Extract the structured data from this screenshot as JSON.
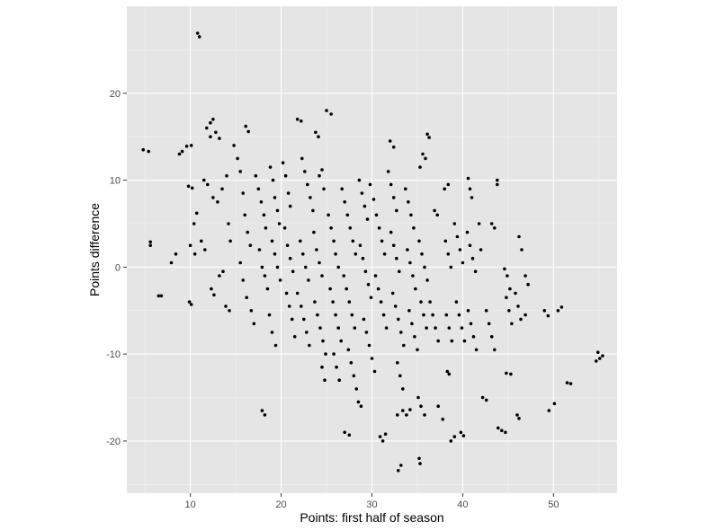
{
  "chart_data": {
    "type": "scatter",
    "title": "",
    "xlabel": "Points: first half of season",
    "ylabel": "Points difference",
    "xlim": [
      3,
      57
    ],
    "ylim": [
      -26,
      30
    ],
    "x_ticks": [
      10,
      20,
      30,
      40,
      50
    ],
    "y_ticks": [
      -20,
      -10,
      0,
      10,
      20
    ],
    "x_tick_labels": [
      "10",
      "20",
      "30",
      "40",
      "50"
    ],
    "y_tick_labels": [
      "-20",
      "-10",
      "0",
      "10",
      "20"
    ],
    "grid": true,
    "point_color": "#000000",
    "panel_color": "#e5e5e5",
    "points": [
      [
        10.8,
        26.9
      ],
      [
        11,
        26.5
      ],
      [
        4.8,
        13.5
      ],
      [
        5.4,
        13.3
      ],
      [
        5.6,
        2.9
      ],
      [
        5.6,
        2.5
      ],
      [
        6.5,
        -3.3
      ],
      [
        6.8,
        -3.3
      ],
      [
        7.9,
        0.5
      ],
      [
        8.4,
        1.5
      ],
      [
        8.8,
        13
      ],
      [
        9.1,
        13.3
      ],
      [
        9.6,
        13.9
      ],
      [
        10.1,
        14
      ],
      [
        9.8,
        9.3
      ],
      [
        10.2,
        9.1
      ],
      [
        10,
        2.5
      ],
      [
        10.5,
        1.5
      ],
      [
        9.9,
        -4
      ],
      [
        10.1,
        -4.3
      ],
      [
        10.4,
        5
      ],
      [
        10.7,
        6.2
      ],
      [
        11.2,
        3
      ],
      [
        11.6,
        2
      ],
      [
        11.8,
        16
      ],
      [
        12.2,
        16.6
      ],
      [
        12.5,
        17
      ],
      [
        12.2,
        15
      ],
      [
        12.8,
        15.5
      ],
      [
        13.2,
        14.8
      ],
      [
        12.3,
        -2.5
      ],
      [
        12.6,
        -3.2
      ],
      [
        11.5,
        10
      ],
      [
        11.9,
        9.5
      ],
      [
        12.5,
        8
      ],
      [
        13,
        7.5
      ],
      [
        13.5,
        9
      ],
      [
        14,
        10.5
      ],
      [
        14.2,
        5
      ],
      [
        14.4,
        3
      ],
      [
        13.2,
        -1
      ],
      [
        13.6,
        -0.5
      ],
      [
        13.9,
        -4.5
      ],
      [
        14.3,
        -5
      ],
      [
        14.8,
        14
      ],
      [
        15.2,
        12.5
      ],
      [
        15.5,
        11
      ],
      [
        15.8,
        8.5
      ],
      [
        16.1,
        16.2
      ],
      [
        16.4,
        15.6
      ],
      [
        16,
        6
      ],
      [
        16.3,
        4
      ],
      [
        16.6,
        2.5
      ],
      [
        15.5,
        0.5
      ],
      [
        15.8,
        -1.5
      ],
      [
        16.2,
        -3.5
      ],
      [
        16.7,
        -5
      ],
      [
        17,
        -6.5
      ],
      [
        17.2,
        10.5
      ],
      [
        17.5,
        9
      ],
      [
        17.8,
        7.5
      ],
      [
        18.1,
        6
      ],
      [
        18.3,
        4.5
      ],
      [
        17.6,
        2
      ],
      [
        17.9,
        0
      ],
      [
        18.2,
        -1
      ],
      [
        18.5,
        -2.5
      ],
      [
        17.9,
        -16.5
      ],
      [
        18.2,
        -17
      ],
      [
        18.8,
        11.5
      ],
      [
        19.1,
        10
      ],
      [
        19.3,
        8
      ],
      [
        19.6,
        6.5
      ],
      [
        19.8,
        5
      ],
      [
        19,
        3
      ],
      [
        19.3,
        1.5
      ],
      [
        19.6,
        0
      ],
      [
        19.9,
        -1.5
      ],
      [
        18.7,
        -5.5
      ],
      [
        19,
        -7.5
      ],
      [
        19.4,
        -9
      ],
      [
        20.2,
        12
      ],
      [
        20.5,
        10.5
      ],
      [
        20.8,
        8.5
      ],
      [
        21,
        7
      ],
      [
        20.4,
        4.5
      ],
      [
        20.7,
        2.5
      ],
      [
        21,
        1
      ],
      [
        21.3,
        -0.5
      ],
      [
        20.6,
        -3
      ],
      [
        20.9,
        -4.5
      ],
      [
        21.2,
        -6
      ],
      [
        21.5,
        -8
      ],
      [
        21.8,
        17
      ],
      [
        22.2,
        16.8
      ],
      [
        22.1,
        3
      ],
      [
        22.4,
        1.5
      ],
      [
        22.7,
        0
      ],
      [
        23,
        -1.5
      ],
      [
        21.8,
        -3
      ],
      [
        22.2,
        -4.5
      ],
      [
        22.5,
        -6
      ],
      [
        22.8,
        -7.5
      ],
      [
        23.1,
        -9
      ],
      [
        22.3,
        12.5
      ],
      [
        22.6,
        11
      ],
      [
        22.9,
        9.5
      ],
      [
        23.2,
        8
      ],
      [
        23.5,
        6.5
      ],
      [
        23.8,
        15.5
      ],
      [
        24.1,
        15
      ],
      [
        24.2,
        10.5
      ],
      [
        24.5,
        11.2
      ],
      [
        24.7,
        9
      ],
      [
        23.6,
        4
      ],
      [
        23.9,
        2
      ],
      [
        24.2,
        0.5
      ],
      [
        24.5,
        -1
      ],
      [
        23.7,
        -4
      ],
      [
        24,
        -5.5
      ],
      [
        24.3,
        -7
      ],
      [
        24.6,
        -8.5
      ],
      [
        24.9,
        -10
      ],
      [
        24.5,
        -11.5
      ],
      [
        24.8,
        -13
      ],
      [
        25,
        18
      ],
      [
        25.5,
        17.6
      ],
      [
        25.2,
        6
      ],
      [
        25.5,
        4.5
      ],
      [
        25.8,
        3
      ],
      [
        26,
        1.5
      ],
      [
        26.3,
        0
      ],
      [
        25.4,
        -2.5
      ],
      [
        25.7,
        -4
      ],
      [
        26,
        -5.5
      ],
      [
        26.3,
        -7
      ],
      [
        26.6,
        -8.5
      ],
      [
        25.8,
        -10
      ],
      [
        26.1,
        -11.5
      ],
      [
        26.4,
        -13
      ],
      [
        26.7,
        9
      ],
      [
        27,
        7.5
      ],
      [
        27.3,
        6
      ],
      [
        27.6,
        4.5
      ],
      [
        27.9,
        3
      ],
      [
        28.2,
        1.5
      ],
      [
        26.9,
        -1
      ],
      [
        27.2,
        -2.5
      ],
      [
        27.5,
        -4
      ],
      [
        27.8,
        -5.5
      ],
      [
        28.1,
        -7
      ],
      [
        27.4,
        -9.5
      ],
      [
        27.7,
        -11
      ],
      [
        28,
        -12.5
      ],
      [
        28.3,
        -14
      ],
      [
        28.5,
        -15.5
      ],
      [
        28.8,
        -16
      ],
      [
        27,
        -19
      ],
      [
        27.5,
        -19.3
      ],
      [
        28.6,
        10
      ],
      [
        28.9,
        8.5
      ],
      [
        29.2,
        7
      ],
      [
        29.5,
        5.5
      ],
      [
        28.7,
        2.5
      ],
      [
        29,
        1
      ],
      [
        29.3,
        -0.5
      ],
      [
        29.6,
        -2
      ],
      [
        29.9,
        -3.5
      ],
      [
        29.1,
        -6
      ],
      [
        29.4,
        -7.5
      ],
      [
        29.7,
        -9
      ],
      [
        30,
        -10.5
      ],
      [
        30.3,
        -12
      ],
      [
        29.8,
        9.5
      ],
      [
        30.2,
        7.8
      ],
      [
        30.5,
        6
      ],
      [
        30.8,
        4.5
      ],
      [
        31.1,
        3
      ],
      [
        31.4,
        1.5
      ],
      [
        30.4,
        -1
      ],
      [
        30.7,
        -2.5
      ],
      [
        31,
        -4
      ],
      [
        31.3,
        -5.5
      ],
      [
        31.6,
        -7
      ],
      [
        30.9,
        -19.5
      ],
      [
        31.2,
        -20
      ],
      [
        31.5,
        -19.2
      ],
      [
        32,
        14.5
      ],
      [
        32.4,
        13.8
      ],
      [
        31.8,
        11
      ],
      [
        32.1,
        9.5
      ],
      [
        32.4,
        8
      ],
      [
        32.7,
        6.5
      ],
      [
        32.1,
        4
      ],
      [
        32.4,
        2.5
      ],
      [
        32.7,
        1
      ],
      [
        33,
        -0.5
      ],
      [
        32.3,
        -3
      ],
      [
        32.6,
        -4.5
      ],
      [
        32.9,
        -6
      ],
      [
        33.2,
        -7.5
      ],
      [
        33.5,
        -9
      ],
      [
        32.8,
        -11
      ],
      [
        33.1,
        -12.5
      ],
      [
        33.4,
        -14
      ],
      [
        32.8,
        -17
      ],
      [
        33.2,
        -22.8
      ],
      [
        32.9,
        -23.4
      ],
      [
        33.4,
        -16.5
      ],
      [
        33.8,
        -17
      ],
      [
        34.2,
        -16.4
      ],
      [
        33.7,
        9
      ],
      [
        34,
        7.5
      ],
      [
        34.3,
        6
      ],
      [
        34.6,
        4.5
      ],
      [
        33.9,
        2
      ],
      [
        34.2,
        0.5
      ],
      [
        34.5,
        -1
      ],
      [
        34.8,
        -2.5
      ],
      [
        34.1,
        -5
      ],
      [
        34.4,
        -6.5
      ],
      [
        34.7,
        -8
      ],
      [
        35,
        -9.5
      ],
      [
        35.3,
        11.5
      ],
      [
        35.6,
        13
      ],
      [
        35.9,
        12.5
      ],
      [
        36.1,
        15.3
      ],
      [
        36.3,
        14.9
      ],
      [
        35.2,
        3
      ],
      [
        35.5,
        1.5
      ],
      [
        35.8,
        0
      ],
      [
        36.1,
        -1.5
      ],
      [
        35.4,
        -4
      ],
      [
        35.7,
        -5.5
      ],
      [
        36,
        -7
      ],
      [
        35.1,
        -15
      ],
      [
        35.4,
        -16
      ],
      [
        35.8,
        -17
      ],
      [
        35.2,
        -22
      ],
      [
        35.3,
        -22.6
      ],
      [
        36.4,
        -4
      ],
      [
        36.7,
        -5.5
      ],
      [
        37,
        -7
      ],
      [
        37.3,
        -8.5
      ],
      [
        36.9,
        6.5
      ],
      [
        37.2,
        6
      ],
      [
        37.3,
        -16
      ],
      [
        37.8,
        -17.5
      ],
      [
        38,
        9
      ],
      [
        38.4,
        9.5
      ],
      [
        38.1,
        3
      ],
      [
        38.4,
        1.5
      ],
      [
        38.7,
        0
      ],
      [
        38.2,
        -5.5
      ],
      [
        38.5,
        -7
      ],
      [
        38.8,
        -8.5
      ],
      [
        38.3,
        -12
      ],
      [
        38.5,
        -12.3
      ],
      [
        38.7,
        -20
      ],
      [
        39.1,
        -19.5
      ],
      [
        39.1,
        5
      ],
      [
        39.4,
        3.5
      ],
      [
        39.7,
        2
      ],
      [
        40,
        0.5
      ],
      [
        39.3,
        -4
      ],
      [
        39.6,
        -5.5
      ],
      [
        39.9,
        -7
      ],
      [
        40.2,
        -8.5
      ],
      [
        39.8,
        -19
      ],
      [
        40.1,
        -19.4
      ],
      [
        40.6,
        10.2
      ],
      [
        40.8,
        9
      ],
      [
        41,
        8
      ],
      [
        40.5,
        4
      ],
      [
        40.8,
        2.5
      ],
      [
        41.1,
        1
      ],
      [
        41.4,
        -0.5
      ],
      [
        40.6,
        -5
      ],
      [
        40.9,
        -6.5
      ],
      [
        41.2,
        -8
      ],
      [
        41.5,
        -9.5
      ],
      [
        41.8,
        5
      ],
      [
        42,
        2
      ],
      [
        42.2,
        -15
      ],
      [
        42.6,
        -15.3
      ],
      [
        42.6,
        -5
      ],
      [
        42.9,
        -6.5
      ],
      [
        43.2,
        -8
      ],
      [
        43.5,
        -9.5
      ],
      [
        43.2,
        5
      ],
      [
        43.5,
        4.5
      ],
      [
        43.8,
        10
      ],
      [
        43.8,
        9.5
      ],
      [
        43.9,
        -18.5
      ],
      [
        44.3,
        -18.8
      ],
      [
        44.7,
        -19
      ],
      [
        44.6,
        -0.2
      ],
      [
        44.9,
        -1
      ],
      [
        45.2,
        -2.5
      ],
      [
        44.8,
        -3.5
      ],
      [
        45.1,
        -5
      ],
      [
        45.4,
        -6.5
      ],
      [
        44.8,
        -12.2
      ],
      [
        45.3,
        -12.3
      ],
      [
        45.8,
        -3
      ],
      [
        46.1,
        -4.5
      ],
      [
        46.4,
        -6
      ],
      [
        46.2,
        3.5
      ],
      [
        46.5,
        2
      ],
      [
        46,
        -17
      ],
      [
        46.2,
        -17.4
      ],
      [
        46.9,
        -1
      ],
      [
        47.2,
        -2
      ],
      [
        46.9,
        -5.5
      ],
      [
        49,
        -5
      ],
      [
        49.4,
        -5.6
      ],
      [
        49.5,
        -16.5
      ],
      [
        50.1,
        -15.7
      ],
      [
        50.5,
        -5
      ],
      [
        50.9,
        -4.6
      ],
      [
        51.5,
        -13.3
      ],
      [
        51.9,
        -13.4
      ],
      [
        54.7,
        -10.8
      ],
      [
        55.1,
        -10.5
      ],
      [
        54.9,
        -9.8
      ],
      [
        55.4,
        -10.2
      ]
    ]
  }
}
